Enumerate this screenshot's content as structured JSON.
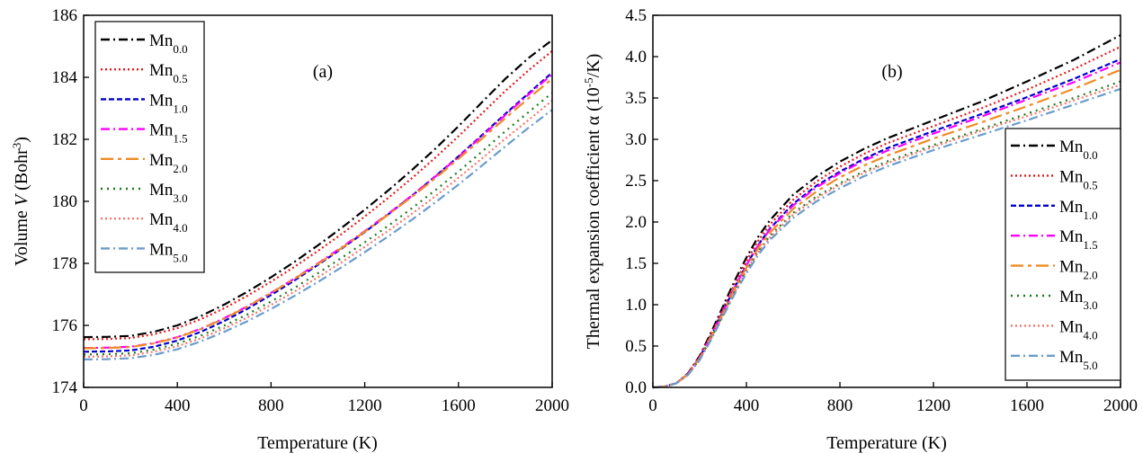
{
  "chart_data": [
    {
      "type": "line",
      "panel_label": "(a)",
      "xlabel": "Temperature (K)",
      "ylabel": {
        "prefix": "Volume ",
        "var": "V",
        "unit_open": " (Bohr",
        "unit_sup": "3",
        "unit_close": ")"
      },
      "xlim": [
        0,
        2000
      ],
      "ylim": [
        174,
        186
      ],
      "xticks": [
        0,
        400,
        800,
        1200,
        1600,
        2000
      ],
      "yticks": [
        174,
        176,
        178,
        180,
        182,
        184,
        186
      ],
      "legend_position": "top-left",
      "x": [
        0,
        100,
        200,
        300,
        400,
        500,
        600,
        700,
        800,
        900,
        1000,
        1100,
        1200,
        1300,
        1400,
        1500,
        1600,
        1700,
        1800,
        1900,
        2000
      ],
      "series": [
        {
          "name": "Mn",
          "sub": "0.0",
          "color": "#000000",
          "dash": "10,4,2,4",
          "values": [
            175.62,
            175.63,
            175.66,
            175.79,
            176.0,
            176.3,
            176.67,
            177.09,
            177.55,
            178.05,
            178.58,
            179.14,
            179.73,
            180.35,
            181.0,
            181.69,
            182.42,
            183.19,
            183.95,
            184.63,
            185.2
          ]
        },
        {
          "name": "Mn",
          "sub": "0.5",
          "color": "#e41a1c",
          "dash": "2,3",
          "values": [
            175.55,
            175.56,
            175.59,
            175.71,
            175.91,
            176.2,
            176.55,
            176.96,
            177.41,
            177.89,
            178.4,
            178.94,
            179.51,
            180.11,
            180.74,
            181.4,
            182.1,
            182.83,
            183.56,
            184.23,
            184.85
          ]
        },
        {
          "name": "Mn",
          "sub": "1.0",
          "color": "#0000cc",
          "dash": "6,3",
          "values": [
            175.15,
            175.16,
            175.19,
            175.31,
            175.51,
            175.79,
            176.14,
            176.54,
            176.98,
            177.45,
            177.95,
            178.47,
            179.01,
            179.58,
            180.17,
            180.8,
            181.45,
            182.13,
            182.82,
            183.49,
            184.15
          ]
        },
        {
          "name": "Mn",
          "sub": "1.5",
          "color": "#ff00ff",
          "dash": "10,4,2,4",
          "values": [
            175.27,
            175.28,
            175.31,
            175.43,
            175.62,
            175.89,
            176.23,
            176.62,
            177.05,
            177.51,
            178.0,
            178.51,
            179.04,
            179.6,
            180.18,
            180.79,
            181.43,
            182.1,
            182.78,
            183.45,
            184.1
          ]
        },
        {
          "name": "Mn",
          "sub": "2.0",
          "color": "#f08a24",
          "dash": "14,5,4,5",
          "values": [
            175.26,
            175.27,
            175.3,
            175.42,
            175.61,
            175.88,
            176.22,
            176.61,
            177.04,
            177.5,
            177.98,
            178.49,
            179.02,
            179.57,
            180.14,
            180.74,
            181.37,
            182.02,
            182.68,
            183.33,
            183.95
          ]
        },
        {
          "name": "Mn",
          "sub": "3.0",
          "color": "#1a7a1a",
          "dash": "2,5",
          "values": [
            175.06,
            175.07,
            175.1,
            175.22,
            175.41,
            175.67,
            175.99,
            176.36,
            176.77,
            177.21,
            177.68,
            178.17,
            178.68,
            179.21,
            179.77,
            180.35,
            180.96,
            181.6,
            182.26,
            182.88,
            183.5
          ]
        },
        {
          "name": "Mn",
          "sub": "4.0",
          "color": "#f4766b",
          "dash": "2,3",
          "values": [
            174.99,
            175.0,
            175.03,
            175.15,
            175.33,
            175.58,
            175.9,
            176.26,
            176.66,
            177.09,
            177.55,
            178.03,
            178.53,
            179.05,
            179.59,
            180.16,
            180.76,
            181.38,
            182.02,
            182.63,
            183.25
          ]
        },
        {
          "name": "Mn",
          "sub": "5.0",
          "color": "#6a9ccc",
          "dash": "10,4,2,4",
          "values": [
            174.9,
            174.91,
            174.94,
            175.05,
            175.23,
            175.48,
            175.79,
            176.14,
            176.53,
            176.95,
            177.4,
            177.87,
            178.36,
            178.87,
            179.4,
            179.96,
            180.54,
            181.15,
            181.77,
            182.38,
            182.95
          ]
        }
      ]
    },
    {
      "type": "line",
      "panel_label": "(b)",
      "xlabel": "Temperature (K)",
      "ylabel": {
        "prefix": "Thermal expansion coefficient α (10",
        "unit_sup": "-5",
        "unit_close": "/K)"
      },
      "xlim": [
        0,
        2000
      ],
      "ylim": [
        0,
        4.5
      ],
      "xticks": [
        0,
        400,
        800,
        1200,
        1600,
        2000
      ],
      "xtick_labels": [
        "0",
        "400",
        "800",
        "1200",
        "1600",
        "2000"
      ],
      "yticks": [
        0,
        0.5,
        1.0,
        1.5,
        2.0,
        2.5,
        3.0,
        3.5,
        4.0,
        4.5
      ],
      "ytick_labels": [
        "0.0",
        "0.5",
        "1.0",
        "1.5",
        "2.0",
        "2.5",
        "3.0",
        "3.5",
        "4.0",
        "4.5"
      ],
      "legend_position": "bottom-right",
      "x": [
        0,
        50,
        100,
        150,
        200,
        250,
        300,
        350,
        400,
        450,
        500,
        600,
        700,
        800,
        900,
        1000,
        1200,
        1400,
        1600,
        1800,
        2000
      ],
      "series": [
        {
          "name": "Mn",
          "sub": "0.0",
          "color": "#000000",
          "dash": "10,4,2,4",
          "values": [
            0,
            0.01,
            0.05,
            0.17,
            0.38,
            0.67,
            0.98,
            1.29,
            1.57,
            1.82,
            2.02,
            2.33,
            2.55,
            2.73,
            2.88,
            3.01,
            3.23,
            3.45,
            3.7,
            3.96,
            4.26
          ]
        },
        {
          "name": "Mn",
          "sub": "0.5",
          "color": "#e41a1c",
          "dash": "2,3",
          "values": [
            0,
            0.01,
            0.05,
            0.17,
            0.37,
            0.65,
            0.95,
            1.25,
            1.53,
            1.77,
            1.97,
            2.27,
            2.49,
            2.67,
            2.82,
            2.95,
            3.16,
            3.37,
            3.6,
            3.85,
            4.12
          ]
        },
        {
          "name": "Mn",
          "sub": "1.0",
          "color": "#0000cc",
          "dash": "6,3",
          "values": [
            0,
            0.01,
            0.05,
            0.16,
            0.36,
            0.63,
            0.92,
            1.21,
            1.48,
            1.72,
            1.92,
            2.22,
            2.44,
            2.61,
            2.76,
            2.89,
            3.1,
            3.3,
            3.51,
            3.73,
            3.97
          ]
        },
        {
          "name": "Mn",
          "sub": "1.5",
          "color": "#ff00ff",
          "dash": "10,4,2,4",
          "values": [
            0,
            0.01,
            0.05,
            0.16,
            0.36,
            0.63,
            0.92,
            1.21,
            1.48,
            1.71,
            1.91,
            2.2,
            2.42,
            2.59,
            2.74,
            2.86,
            3.07,
            3.27,
            3.48,
            3.69,
            3.93
          ]
        },
        {
          "name": "Mn",
          "sub": "2.0",
          "color": "#f08a24",
          "dash": "14,5,4,5",
          "values": [
            0,
            0.01,
            0.05,
            0.16,
            0.35,
            0.62,
            0.9,
            1.19,
            1.45,
            1.68,
            1.87,
            2.16,
            2.37,
            2.54,
            2.68,
            2.8,
            3.01,
            3.2,
            3.4,
            3.61,
            3.84
          ]
        },
        {
          "name": "Mn",
          "sub": "3.0",
          "color": "#1a7a1a",
          "dash": "2,5",
          "values": [
            0,
            0.01,
            0.05,
            0.15,
            0.34,
            0.6,
            0.88,
            1.16,
            1.42,
            1.64,
            1.83,
            2.11,
            2.31,
            2.47,
            2.61,
            2.73,
            2.93,
            3.12,
            3.31,
            3.5,
            3.7
          ]
        },
        {
          "name": "Mn",
          "sub": "4.0",
          "color": "#f4766b",
          "dash": "2,3",
          "values": [
            0,
            0.01,
            0.05,
            0.15,
            0.34,
            0.6,
            0.88,
            1.15,
            1.41,
            1.63,
            1.81,
            2.09,
            2.29,
            2.45,
            2.59,
            2.71,
            2.91,
            3.1,
            3.28,
            3.47,
            3.66
          ]
        },
        {
          "name": "Mn",
          "sub": "5.0",
          "color": "#6a9ccc",
          "dash": "10,4,2,4",
          "values": [
            0,
            0.01,
            0.05,
            0.15,
            0.33,
            0.58,
            0.86,
            1.13,
            1.38,
            1.6,
            1.78,
            2.05,
            2.25,
            2.41,
            2.55,
            2.67,
            2.87,
            3.05,
            3.23,
            3.42,
            3.61
          ]
        }
      ]
    }
  ]
}
